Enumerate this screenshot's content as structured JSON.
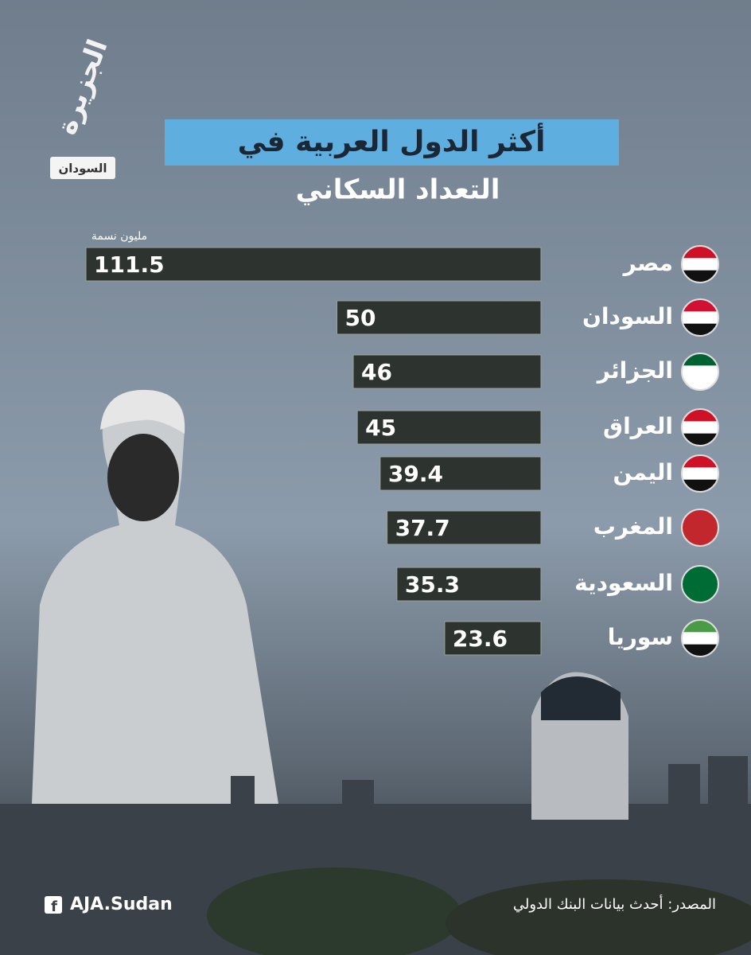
{
  "logo": {
    "brand": "الجزيرة",
    "region": "السودان"
  },
  "chart_data": {
    "type": "bar",
    "orientation": "horizontal",
    "title": "أكثر الدول العربية في",
    "subtitle": "التعداد السكاني",
    "unit": "مليون نسمة",
    "categories": [
      "مصر",
      "السودان",
      "الجزائر",
      "العراق",
      "اليمن",
      "المغرب",
      "السعودية",
      "سوريا"
    ],
    "values": [
      111.5,
      50,
      46,
      45,
      39.4,
      37.7,
      35.3,
      23.6
    ],
    "color": "#2d342f"
  },
  "footer": {
    "social": "AJA.Sudan",
    "source": "المصدر: أحدث بيانات البنك الدولي"
  }
}
